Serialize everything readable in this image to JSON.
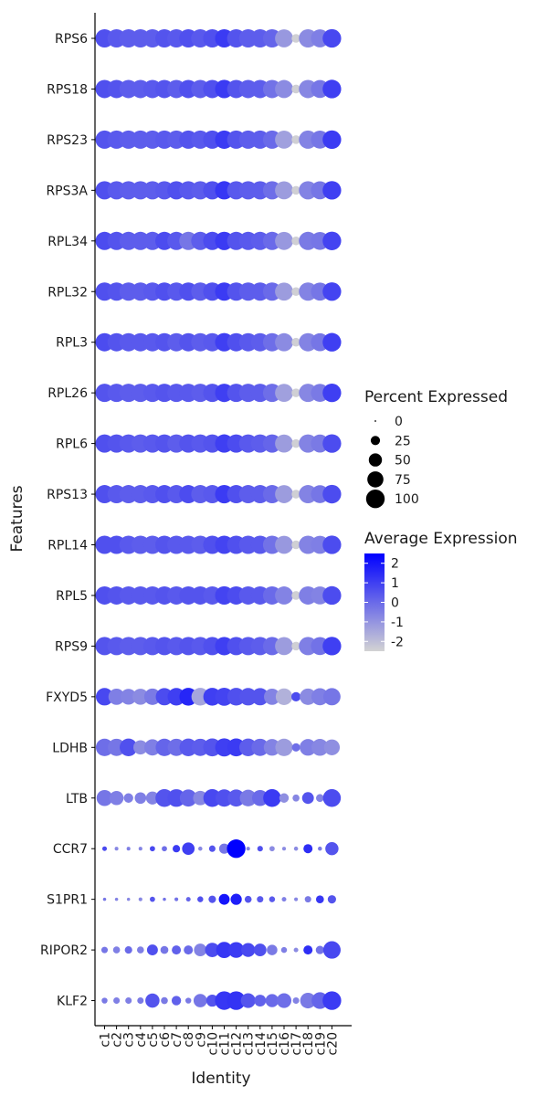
{
  "chart_data": {
    "type": "dotplot",
    "xlabel": "Identity",
    "ylabel": "Features",
    "clusters": [
      "c1",
      "c2",
      "c3",
      "c4",
      "c5",
      "c6",
      "c7",
      "c8",
      "c9",
      "c10",
      "c11",
      "c12",
      "c13",
      "c14",
      "c15",
      "c16",
      "c17",
      "c18",
      "c19",
      "c20"
    ],
    "features": [
      "RPS6",
      "RPS18",
      "RPS23",
      "RPS3A",
      "RPL34",
      "RPL32",
      "RPL3",
      "RPL26",
      "RPL6",
      "RPS13",
      "RPL14",
      "RPL5",
      "RPS9",
      "FXYD5",
      "LDHB",
      "LTB",
      "CCR7",
      "S1PR1",
      "RIPOR2",
      "KLF2"
    ],
    "legend_size": {
      "title": "Percent Expressed",
      "breaks": [
        0,
        25,
        50,
        75,
        100
      ],
      "labels": [
        "0",
        "25",
        "50",
        "75",
        "100"
      ]
    },
    "legend_color": {
      "title": "Average Expression",
      "low": "#d3d3d3",
      "high": "#0000ff",
      "range": [
        -2.5,
        2.5
      ],
      "breaks": [
        2,
        1,
        0,
        -1,
        -2
      ],
      "labels": [
        "2",
        "1",
        "0",
        "-1",
        "-2"
      ]
    },
    "series": [
      {
        "name": "RPS6",
        "pct": [
          96,
          96,
          96,
          96,
          96,
          96,
          96,
          96,
          96,
          96,
          97,
          96,
          96,
          96,
          96,
          94,
          22,
          96,
          93,
          99
        ],
        "avg": [
          0.6,
          0.4,
          0.3,
          0.3,
          0.3,
          0.5,
          0.4,
          0.6,
          0.4,
          0.6,
          1.1,
          0.5,
          0.3,
          0.3,
          0.1,
          -1.1,
          -2.4,
          -0.8,
          -0.5,
          0.8
        ]
      },
      {
        "name": "RPS18",
        "pct": [
          96,
          96,
          96,
          96,
          96,
          96,
          96,
          96,
          96,
          96,
          97,
          96,
          96,
          96,
          96,
          94,
          22,
          96,
          93,
          99
        ],
        "avg": [
          0.6,
          0.5,
          0.3,
          0.3,
          0.4,
          0.5,
          0.3,
          0.6,
          0.3,
          0.6,
          1.1,
          0.5,
          0.3,
          0.3,
          -0.2,
          -0.8,
          -2.4,
          -0.7,
          -0.3,
          1.0
        ]
      },
      {
        "name": "RPS23",
        "pct": [
          96,
          96,
          96,
          96,
          96,
          96,
          96,
          96,
          96,
          96,
          97,
          96,
          96,
          96,
          96,
          94,
          22,
          96,
          93,
          99
        ],
        "avg": [
          0.5,
          0.4,
          0.3,
          0.3,
          0.3,
          0.4,
          0.3,
          0.5,
          0.4,
          0.6,
          1.1,
          0.5,
          0.3,
          0.3,
          0.0,
          -1.3,
          -2.4,
          -0.6,
          -0.3,
          1.1
        ]
      },
      {
        "name": "RPS3A",
        "pct": [
          96,
          96,
          96,
          96,
          96,
          96,
          96,
          96,
          96,
          96,
          97,
          96,
          96,
          96,
          96,
          94,
          22,
          96,
          93,
          99
        ],
        "avg": [
          0.6,
          0.4,
          0.3,
          0.3,
          0.3,
          0.4,
          0.6,
          0.4,
          0.3,
          0.6,
          1.2,
          0.4,
          0.3,
          0.3,
          -0.1,
          -1.2,
          -2.4,
          -0.6,
          -0.3,
          1.0
        ]
      },
      {
        "name": "RPL34",
        "pct": [
          96,
          96,
          96,
          96,
          96,
          96,
          96,
          96,
          96,
          96,
          97,
          96,
          96,
          96,
          96,
          94,
          22,
          96,
          93,
          99
        ],
        "avg": [
          0.7,
          0.5,
          0.3,
          0.3,
          0.3,
          0.7,
          0.4,
          -0.3,
          0.3,
          0.7,
          1.1,
          0.5,
          0.4,
          0.3,
          0.0,
          -1.1,
          -2.4,
          -0.4,
          -0.3,
          0.9
        ]
      },
      {
        "name": "RPL32",
        "pct": [
          96,
          96,
          96,
          96,
          96,
          96,
          96,
          96,
          96,
          96,
          97,
          96,
          96,
          96,
          96,
          94,
          22,
          96,
          93,
          99
        ],
        "avg": [
          0.6,
          0.5,
          0.3,
          0.3,
          0.4,
          0.6,
          0.4,
          0.6,
          0.3,
          0.6,
          1.1,
          0.5,
          0.3,
          0.3,
          0.0,
          -1.2,
          -2.4,
          -0.6,
          -0.3,
          0.9
        ]
      },
      {
        "name": "RPL3",
        "pct": [
          96,
          96,
          96,
          96,
          96,
          96,
          96,
          96,
          96,
          96,
          97,
          96,
          96,
          96,
          96,
          94,
          22,
          96,
          93,
          99
        ],
        "avg": [
          0.7,
          0.5,
          0.4,
          0.4,
          0.4,
          0.5,
          0.3,
          0.5,
          0.3,
          0.4,
          1.0,
          0.6,
          0.4,
          0.3,
          -0.1,
          -0.8,
          -2.4,
          -0.6,
          -0.3,
          1.0
        ]
      },
      {
        "name": "RPL26",
        "pct": [
          96,
          96,
          96,
          96,
          96,
          96,
          96,
          96,
          96,
          96,
          97,
          96,
          96,
          96,
          96,
          94,
          22,
          96,
          93,
          99
        ],
        "avg": [
          0.5,
          0.4,
          0.3,
          0.3,
          0.4,
          0.5,
          0.4,
          0.4,
          0.3,
          0.5,
          1.0,
          0.5,
          0.3,
          0.3,
          -0.1,
          -1.3,
          -2.4,
          -0.7,
          -0.4,
          1.0
        ]
      },
      {
        "name": "RPL6",
        "pct": [
          96,
          96,
          96,
          96,
          96,
          96,
          96,
          96,
          96,
          96,
          97,
          96,
          96,
          96,
          96,
          94,
          22,
          96,
          93,
          99
        ],
        "avg": [
          0.6,
          0.5,
          0.4,
          0.3,
          0.4,
          0.5,
          0.3,
          0.5,
          0.4,
          0.5,
          1.0,
          0.7,
          0.4,
          0.3,
          0.1,
          -1.2,
          -2.4,
          -0.6,
          -0.4,
          0.7
        ]
      },
      {
        "name": "RPS13",
        "pct": [
          96,
          96,
          96,
          96,
          96,
          96,
          96,
          96,
          96,
          96,
          97,
          96,
          96,
          96,
          96,
          94,
          22,
          96,
          93,
          99
        ],
        "avg": [
          0.6,
          0.4,
          0.3,
          0.3,
          0.4,
          0.6,
          0.4,
          0.7,
          0.3,
          0.4,
          1.1,
          0.6,
          0.3,
          0.3,
          0.0,
          -1.2,
          -2.4,
          -0.6,
          -0.3,
          0.7
        ]
      },
      {
        "name": "RPL14",
        "pct": [
          96,
          96,
          96,
          96,
          96,
          96,
          96,
          96,
          96,
          96,
          97,
          96,
          96,
          96,
          96,
          94,
          22,
          96,
          93,
          99
        ],
        "avg": [
          0.6,
          0.6,
          0.4,
          0.3,
          0.3,
          0.5,
          0.4,
          0.4,
          0.3,
          0.6,
          0.9,
          0.6,
          0.4,
          0.4,
          -0.2,
          -1.1,
          -2.4,
          -0.6,
          -0.5,
          0.7
        ]
      },
      {
        "name": "RPL5",
        "pct": [
          96,
          96,
          96,
          96,
          96,
          96,
          96,
          96,
          96,
          96,
          97,
          96,
          96,
          96,
          96,
          94,
          22,
          96,
          93,
          99
        ],
        "avg": [
          0.6,
          0.5,
          0.4,
          0.4,
          0.4,
          0.5,
          0.4,
          0.5,
          0.5,
          0.4,
          0.9,
          0.7,
          0.4,
          0.4,
          0.0,
          -0.6,
          -2.4,
          -0.5,
          -0.6,
          0.7
        ]
      },
      {
        "name": "RPS9",
        "pct": [
          96,
          96,
          96,
          96,
          96,
          96,
          96,
          96,
          96,
          96,
          97,
          96,
          96,
          96,
          96,
          94,
          22,
          96,
          93,
          99
        ],
        "avg": [
          0.5,
          0.4,
          0.3,
          0.3,
          0.4,
          0.5,
          0.4,
          0.5,
          0.4,
          0.6,
          1.0,
          0.6,
          0.4,
          0.3,
          0.0,
          -1.2,
          -2.4,
          -0.5,
          -0.2,
          1.0
        ]
      },
      {
        "name": "FXYD5",
        "pct": [
          88,
          76,
          72,
          74,
          78,
          86,
          89,
          92,
          90,
          92,
          94,
          90,
          88,
          86,
          76,
          80,
          25,
          78,
          84,
          86
        ],
        "avg": [
          0.8,
          -0.5,
          -0.6,
          -0.8,
          -0.4,
          0.7,
          1.0,
          1.6,
          -1.4,
          1.0,
          0.9,
          0.6,
          0.5,
          0.5,
          -0.6,
          -1.7,
          0.7,
          -0.8,
          -0.5,
          -0.3
        ]
      },
      {
        "name": "LDHB",
        "pct": [
          88,
          86,
          90,
          58,
          76,
          88,
          86,
          90,
          86,
          93,
          95,
          92,
          90,
          86,
          80,
          88,
          20,
          80,
          82,
          72
        ],
        "avg": [
          -0.1,
          -0.3,
          0.6,
          -0.8,
          -0.5,
          0.1,
          -0.1,
          0.4,
          0.3,
          0.5,
          1.0,
          1.1,
          0.3,
          0.0,
          -0.6,
          -1.2,
          -0.1,
          -0.5,
          -0.7,
          -0.9
        ]
      },
      {
        "name": "LTB",
        "pct": [
          74,
          57,
          26,
          38,
          48,
          92,
          90,
          84,
          60,
          91,
          86,
          84,
          80,
          74,
          91,
          26,
          14,
          40,
          18,
          92
        ],
        "avg": [
          -0.3,
          -0.5,
          -0.5,
          -0.5,
          -0.6,
          0.5,
          0.6,
          0.1,
          -0.7,
          0.8,
          0.6,
          0.4,
          -0.4,
          0.0,
          1.1,
          -0.9,
          -0.7,
          0.5,
          -0.6,
          0.7
        ]
      },
      {
        "name": "CCR7",
        "pct": [
          6,
          4,
          4,
          4,
          8,
          8,
          16,
          45,
          5,
          12,
          30,
          99,
          4,
          9,
          8,
          4,
          5,
          24,
          5,
          50
        ],
        "avg": [
          0.8,
          -0.7,
          -0.5,
          -0.6,
          0.8,
          -0.1,
          1.1,
          1.0,
          -0.7,
          0.5,
          -0.3,
          2.5,
          -0.6,
          0.6,
          -0.8,
          -0.8,
          -0.8,
          1.4,
          -0.4,
          0.5
        ]
      },
      {
        "name": "S1PR1",
        "pct": [
          3,
          3,
          3,
          4,
          8,
          3,
          4,
          6,
          10,
          16,
          34,
          36,
          14,
          12,
          10,
          6,
          4,
          12,
          18,
          20
        ],
        "avg": [
          -0.3,
          -0.6,
          -0.7,
          -0.7,
          0.5,
          -0.2,
          -0.2,
          0.1,
          0.6,
          0.5,
          2.0,
          1.8,
          0.5,
          0.4,
          0.4,
          -0.5,
          -0.7,
          -0.4,
          1.2,
          0.5
        ]
      },
      {
        "name": "RIPOR2",
        "pct": [
          12,
          14,
          16,
          14,
          34,
          18,
          24,
          24,
          46,
          60,
          76,
          72,
          56,
          46,
          32,
          10,
          6,
          24,
          20,
          88
        ],
        "avg": [
          -0.3,
          -0.5,
          0.0,
          -0.5,
          0.6,
          -0.3,
          0.2,
          0.0,
          -0.6,
          0.7,
          1.2,
          1.1,
          0.8,
          0.6,
          -0.4,
          -0.5,
          -0.8,
          1.4,
          -0.2,
          0.8
        ]
      },
      {
        "name": "KLF2",
        "pct": [
          10,
          12,
          12,
          12,
          58,
          14,
          26,
          10,
          52,
          42,
          99,
          100,
          62,
          40,
          50,
          62,
          12,
          70,
          80,
          100
        ],
        "avg": [
          -0.4,
          -0.5,
          -0.5,
          -0.4,
          0.5,
          -0.4,
          0.2,
          -0.4,
          -0.3,
          0.5,
          1.2,
          1.3,
          0.5,
          0.2,
          0.0,
          -0.1,
          -0.6,
          -0.4,
          0.1,
          1.1
        ]
      }
    ]
  }
}
